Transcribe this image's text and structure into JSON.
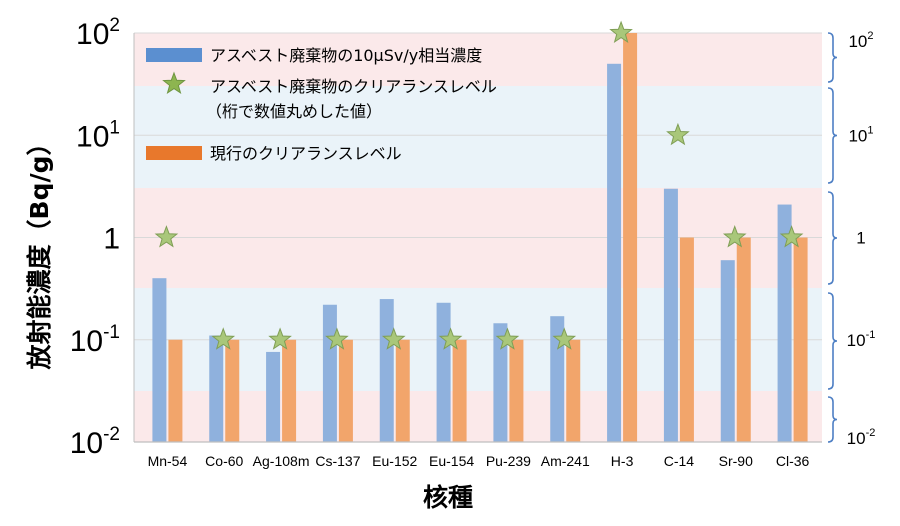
{
  "chart_data": {
    "type": "bar",
    "ylabel": "放射能濃度（Bq/g）",
    "xlabel": "核種",
    "yscale": "log",
    "ylim": [
      0.01,
      100
    ],
    "y_ticks_left": [
      {
        "value": 100,
        "base": "10",
        "exp": "2"
      },
      {
        "value": 10,
        "base": "10",
        "exp": "1"
      },
      {
        "value": 1,
        "base": "1",
        "exp": ""
      },
      {
        "value": 0.1,
        "base": "10",
        "exp": "-1"
      },
      {
        "value": 0.01,
        "base": "10",
        "exp": "-2"
      }
    ],
    "y_ticks_right": [
      {
        "value": 100,
        "base": "10",
        "exp": "2"
      },
      {
        "value": 10,
        "base": "10",
        "exp": "1"
      },
      {
        "value": 1,
        "base": "1",
        "exp": ""
      },
      {
        "value": 0.1,
        "base": "10",
        "exp": "-1"
      },
      {
        "value": 0.01,
        "base": "10",
        "exp": "-2"
      }
    ],
    "categories": [
      "Mn-54",
      "Co-60",
      "Ag-108m",
      "Cs-137",
      "Eu-152",
      "Eu-154",
      "Pu-239",
      "Am-241",
      "H-3",
      "C-14",
      "Sr-90",
      "Cl-36"
    ],
    "series": [
      {
        "name": "アスベスト廃棄物の10μSv/y相当濃度",
        "kind": "bar",
        "color": "#8FB1DD",
        "values": [
          0.4,
          0.11,
          0.076,
          0.22,
          0.25,
          0.23,
          0.145,
          0.17,
          50,
          3,
          0.6,
          2.1
        ]
      },
      {
        "name": "現行のクリアランスレベル",
        "kind": "bar",
        "color": "#F2A56B",
        "values": [
          0.1,
          0.1,
          0.1,
          0.1,
          0.1,
          0.1,
          0.1,
          0.1,
          100,
          1,
          1,
          1
        ]
      },
      {
        "name": "アスベスト廃棄物のクリアランスレベル",
        "name_line2": "（桁で数値丸めした値）",
        "kind": "star",
        "color": "#A9C77A",
        "values": [
          1,
          0.1,
          0.1,
          0.1,
          0.1,
          0.1,
          0.1,
          0.1,
          100,
          10,
          1,
          1
        ]
      }
    ],
    "legend": {
      "placement": "top-left",
      "items": [
        {
          "label": "アスベスト廃棄物の10μSv/y相当濃度",
          "color": "#5B8FD0",
          "kind": "bar"
        },
        {
          "label": "アスベスト廃棄物のクリアランスレベル",
          "label_line2": "（桁で数値丸めした値）",
          "color": "#8DB550",
          "kind": "star"
        },
        {
          "label": "現行のクリアランスレベル",
          "color": "#E8782C",
          "kind": "bar"
        }
      ]
    },
    "band_colors": {
      "pink": "#FBE9EA",
      "blue": "#EAF3F9"
    },
    "bracket_color": "#4E7FC4"
  }
}
